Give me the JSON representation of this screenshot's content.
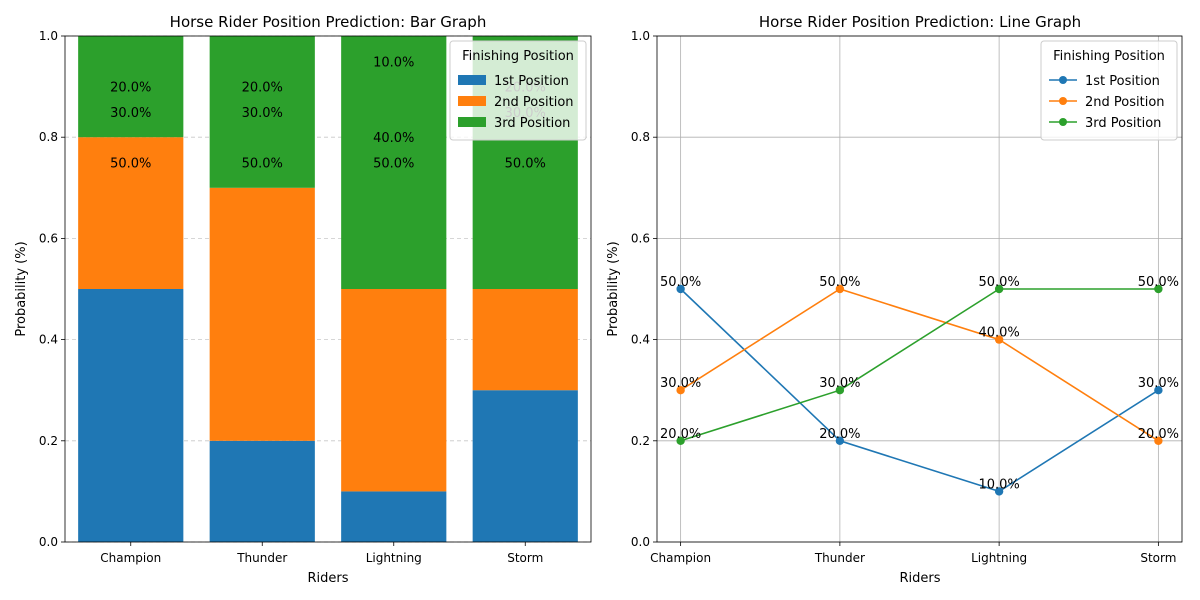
{
  "colors": {
    "first": "#1f77b4",
    "second": "#ff7f0e",
    "third": "#2ca02c",
    "grid": "#b0b0b0"
  },
  "chart_data": [
    {
      "type": "bar",
      "stacked": true,
      "title": "Horse Rider Position Prediction: Bar Graph",
      "xlabel": "Riders",
      "ylabel": "Probability (%)",
      "ylim": [
        0,
        1
      ],
      "yticks": [
        0.0,
        0.2,
        0.4,
        0.6,
        0.8,
        1.0
      ],
      "ytick_labels": [
        "0.0",
        "0.2",
        "0.4",
        "0.6",
        "0.8",
        "1.0"
      ],
      "grid": "y dashed",
      "legend": {
        "title": "Finishing Position",
        "placement": "top-right"
      },
      "categories": [
        "Champion",
        "Thunder",
        "Lightning",
        "Storm"
      ],
      "series": [
        {
          "name": "1st Position",
          "color_key": "first",
          "values": [
            0.5,
            0.2,
            0.1,
            0.3
          ]
        },
        {
          "name": "2nd Position",
          "color_key": "second",
          "values": [
            0.3,
            0.5,
            0.4,
            0.2
          ]
        },
        {
          "name": "3rd Position",
          "color_key": "third",
          "values": [
            0.2,
            0.3,
            0.5,
            0.5
          ]
        }
      ],
      "data_labels": [
        {
          "category": "Champion",
          "text": "50.0%",
          "y": 0.75
        },
        {
          "category": "Champion",
          "text": "30.0%",
          "y": 0.85
        },
        {
          "category": "Champion",
          "text": "20.0%",
          "y": 0.9
        },
        {
          "category": "Thunder",
          "text": "50.0%",
          "y": 0.75
        },
        {
          "category": "Thunder",
          "text": "30.0%",
          "y": 0.85
        },
        {
          "category": "Thunder",
          "text": "20.0%",
          "y": 0.9
        },
        {
          "category": "Lightning",
          "text": "50.0%",
          "y": 0.75
        },
        {
          "category": "Lightning",
          "text": "40.0%",
          "y": 0.8
        },
        {
          "category": "Lightning",
          "text": "10.0%",
          "y": 0.95
        },
        {
          "category": "Storm",
          "text": "50.0%",
          "y": 0.75
        },
        {
          "category": "Storm",
          "text": "20.0%",
          "y": 0.9
        },
        {
          "category": "Storm",
          "text": "30.0%",
          "y": 0.85
        }
      ]
    },
    {
      "type": "line",
      "title": "Horse Rider Position Prediction: Line Graph",
      "xlabel": "Riders",
      "ylabel": "Probability (%)",
      "ylim": [
        0,
        1
      ],
      "yticks": [
        0.0,
        0.2,
        0.4,
        0.6,
        0.8,
        1.0
      ],
      "ytick_labels": [
        "0.0",
        "0.2",
        "0.4",
        "0.6",
        "0.8",
        "1.0"
      ],
      "grid": "both solid",
      "legend": {
        "title": "Finishing Position",
        "placement": "top-right"
      },
      "categories": [
        "Champion",
        "Thunder",
        "Lightning",
        "Storm"
      ],
      "series": [
        {
          "name": "1st Position",
          "color_key": "first",
          "values": [
            0.5,
            0.2,
            0.1,
            0.3
          ],
          "labels": [
            "50.0%",
            "20.0%",
            "10.0%",
            "30.0%"
          ]
        },
        {
          "name": "2nd Position",
          "color_key": "second",
          "values": [
            0.3,
            0.5,
            0.4,
            0.2
          ],
          "labels": [
            "30.0%",
            "50.0%",
            "40.0%",
            "20.0%"
          ]
        },
        {
          "name": "3rd Position",
          "color_key": "third",
          "values": [
            0.2,
            0.3,
            0.5,
            0.5
          ],
          "labels": [
            "20.0%",
            "30.0%",
            "50.0%",
            "50.0%"
          ]
        }
      ]
    }
  ]
}
